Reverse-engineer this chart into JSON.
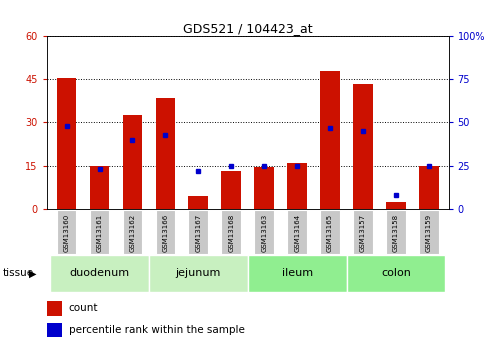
{
  "title": "GDS521 / 104423_at",
  "samples": [
    "GSM13160",
    "GSM13161",
    "GSM13162",
    "GSM13166",
    "GSM13167",
    "GSM13168",
    "GSM13163",
    "GSM13164",
    "GSM13165",
    "GSM13157",
    "GSM13158",
    "GSM13159"
  ],
  "count_values": [
    45.5,
    15.0,
    32.5,
    38.5,
    4.5,
    13.0,
    14.5,
    16.0,
    48.0,
    43.5,
    2.5,
    15.0
  ],
  "percentile_values": [
    48,
    23,
    40,
    43,
    22,
    25,
    25,
    25,
    47,
    45,
    8,
    25
  ],
  "tissues": [
    {
      "name": "duodenum",
      "start": 0,
      "end": 3
    },
    {
      "name": "jejunum",
      "start": 3,
      "end": 6
    },
    {
      "name": "ileum",
      "start": 6,
      "end": 9
    },
    {
      "name": "colon",
      "start": 9,
      "end": 12
    }
  ],
  "tissue_colors": [
    "#c8f0c0",
    "#c8f0c0",
    "#90ee90",
    "#90ee90"
  ],
  "left_ylim": [
    0,
    60
  ],
  "right_ylim": [
    0,
    100
  ],
  "left_yticks": [
    0,
    15,
    30,
    45,
    60
  ],
  "right_yticks": [
    0,
    25,
    50,
    75,
    100
  ],
  "right_yticklabels": [
    "0",
    "25",
    "50",
    "75",
    "100%"
  ],
  "bar_color": "#cc1100",
  "dot_color": "#0000cc",
  "plot_bg": "#ffffff",
  "left_tick_color": "#cc1100",
  "right_tick_color": "#0000cc",
  "gsm_box_color": "#c8c8c8",
  "title_fontsize": 9,
  "axis_fontsize": 7,
  "label_fontsize": 7,
  "tissue_fontsize": 8
}
